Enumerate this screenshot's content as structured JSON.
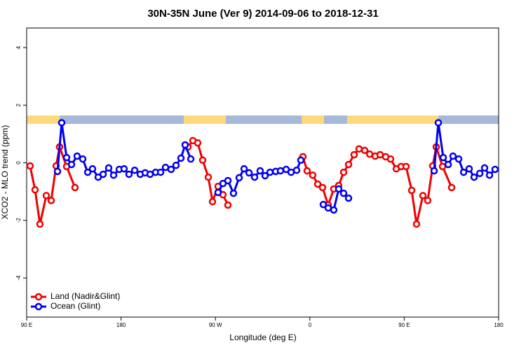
{
  "chart_data": {
    "type": "line",
    "title": "30N-35N June (Ver 9)   2014-09-06 to 2018-12-31",
    "x_label": "Longitude (deg E)",
    "y_label": "XCO2 - MLO trend (ppm)",
    "xlim": [
      90,
      540
    ],
    "ylim": [
      -5.36,
      4.68
    ],
    "xticks": [
      {
        "value": 90,
        "label": "90 E"
      },
      {
        "value": 180,
        "label": "180"
      },
      {
        "value": 270,
        "label": "90 W"
      },
      {
        "value": 360,
        "label": "0"
      },
      {
        "value": 450,
        "label": "90 E"
      },
      {
        "value": 540,
        "label": "180"
      }
    ],
    "yticks": [
      4,
      2,
      0,
      -2,
      -4
    ],
    "legend": "bottomleft",
    "series": [
      {
        "name": "Land (Nadir&Glint)",
        "color": "#ee0000",
        "x": [
          93.3,
          98.0,
          102.7,
          108.7,
          113.4,
          118.1,
          121.4,
          128.1,
          136.1,
          null,
          243.8,
          248.5,
          253.1,
          257.8,
          263.2,
          267.2,
          272.5,
          277.2,
          281.9,
          null,
          353.4,
          357.4,
          362.7,
          367.5,
          372.1,
          377.5,
          382.8,
          387.5,
          392.2,
          396.9,
          402.2,
          406.9,
          412.3,
          417.0,
          422.3,
          427.0,
          432.3,
          437.0,
          442.4,
          447.0,
          451.7,
          457.1,
          461.7,
          467.8,
          472.4,
          477.1,
          480.5,
          486.5,
          495.2
        ],
        "values": [
          -0.11,
          -0.94,
          -2.13,
          -1.14,
          -1.31,
          -0.11,
          0.55,
          -0.13,
          -0.86,
          null,
          0.55,
          0.77,
          0.69,
          0.09,
          -0.5,
          -1.35,
          -0.82,
          -1.11,
          -1.47,
          null,
          0.21,
          -0.28,
          -0.43,
          -0.74,
          -0.86,
          -1.47,
          -0.91,
          -0.79,
          -0.33,
          -0.06,
          0.28,
          0.48,
          0.43,
          0.3,
          0.23,
          0.28,
          0.21,
          0.13,
          -0.21,
          -0.13,
          -0.13,
          -0.96,
          -2.13,
          -1.14,
          -1.31,
          -0.11,
          0.55,
          -0.13,
          -0.86
        ]
      },
      {
        "name": "Ocean (Glint)",
        "color": "#0000ee",
        "x": [
          119.4,
          123.4,
          128.1,
          132.8,
          138.1,
          143.5,
          148.2,
          152.8,
          158.2,
          162.9,
          168.2,
          172.9,
          178.3,
          182.9,
          187.6,
          193.0,
          198.3,
          203.0,
          207.7,
          213.0,
          217.7,
          222.4,
          227.7,
          232.4,
          237.1,
          241.1,
          246.5,
          null,
          272.5,
          277.2,
          281.9,
          287.2,
          292.6,
          297.3,
          302.0,
          307.3,
          312.6,
          317.3,
          322.0,
          327.4,
          332.0,
          337.4,
          342.1,
          347.4,
          351.4,
          null,
          372.8,
          377.5,
          382.8,
          387.5,
          392.2,
          396.9,
          null,
          478.5,
          482.5,
          487.2,
          491.9,
          496.5,
          501.9,
          506.6,
          511.9,
          516.6,
          522.0,
          526.6,
          531.3,
          536.6
        ],
        "values": [
          -0.3,
          1.39,
          0.18,
          -0.06,
          0.23,
          0.13,
          -0.33,
          -0.21,
          -0.5,
          -0.4,
          -0.18,
          -0.43,
          -0.23,
          -0.21,
          -0.4,
          -0.26,
          -0.4,
          -0.35,
          -0.4,
          -0.33,
          -0.33,
          -0.16,
          -0.23,
          -0.09,
          0.16,
          0.62,
          0.13,
          null,
          -1.03,
          -0.72,
          -0.62,
          -1.06,
          -0.52,
          -0.21,
          -0.35,
          -0.5,
          -0.28,
          -0.45,
          -0.33,
          -0.3,
          -0.28,
          -0.23,
          -0.33,
          -0.26,
          0.09,
          null,
          -1.45,
          -1.57,
          -1.64,
          -0.91,
          -1.06,
          -1.23,
          null,
          -0.28,
          1.39,
          0.18,
          -0.06,
          0.23,
          0.13,
          -0.33,
          -0.21,
          -0.5,
          -0.37,
          -0.18,
          -0.43,
          -0.23
        ]
      }
    ]
  }
}
